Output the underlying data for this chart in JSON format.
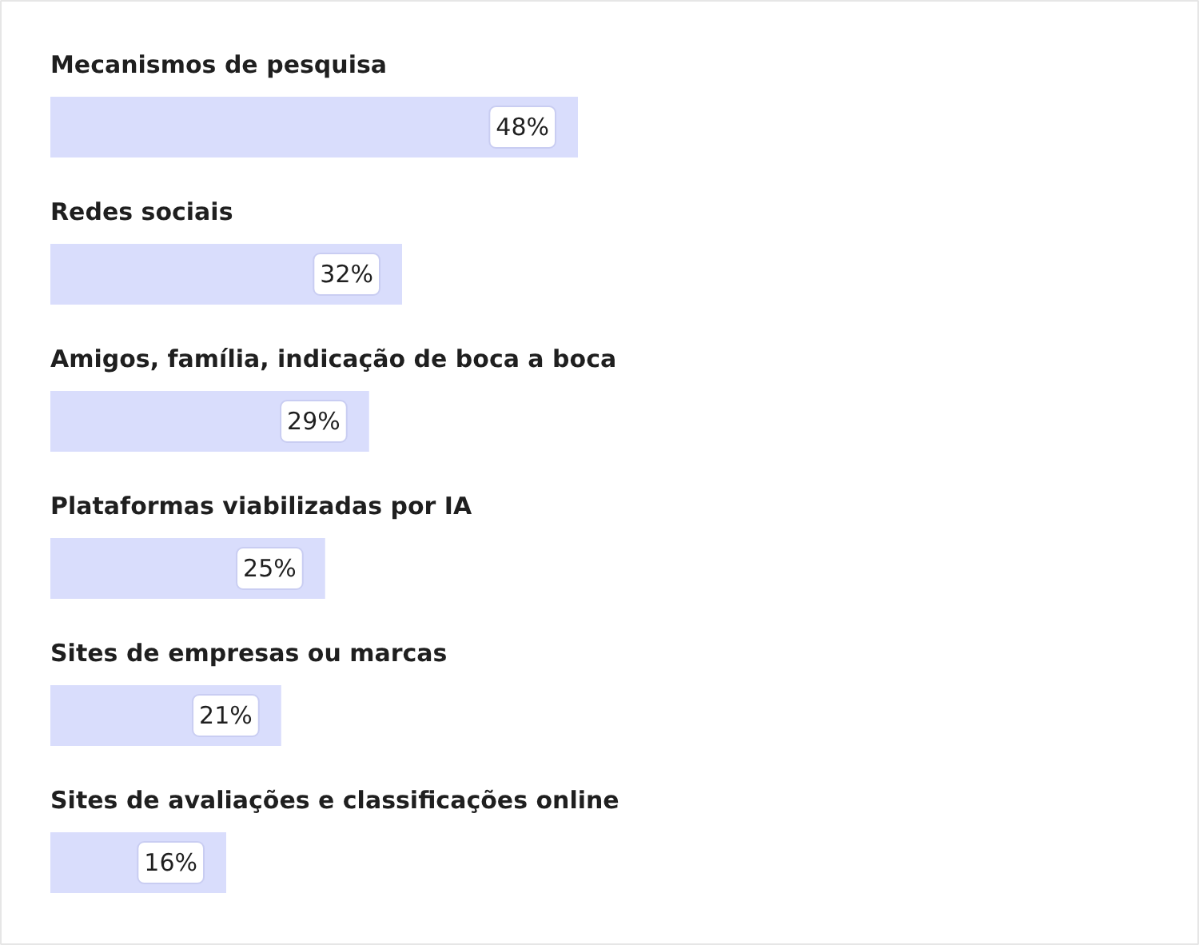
{
  "chart_data": {
    "type": "bar",
    "orientation": "horizontal",
    "categories": [
      "Mecanismos de pesquisa",
      "Redes sociais",
      "Amigos, família, indicação de boca a boca",
      "Plataformas viabilizadas por IA",
      "Sites de empresas ou marcas",
      "Sites de avaliações e classificações online"
    ],
    "values": [
      48,
      32,
      29,
      25,
      21,
      16
    ],
    "value_labels": [
      "48%",
      "32%",
      "29%",
      "25%",
      "21%",
      "16%"
    ],
    "color": "#d9ddfc"
  }
}
